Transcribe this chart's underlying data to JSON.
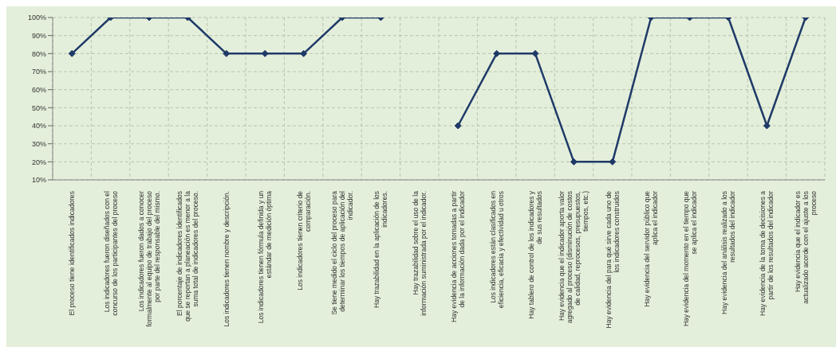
{
  "chart_data": {
    "type": "line",
    "categories": [
      "El proceso tiene identificados indicadores",
      "Los indicadores fueron diseñados con el concurso de los participantes del proceso",
      "Los indicadores fueron dados a conocer formalmente al equipo de trabajo del proceso por parte del responsable del mismo.",
      "El porcentaje de indicadores identificados que se reportan a planeación es menor a la suma total de indicadores del proceso.",
      "Los indicadores tienen nombre y descripción.",
      "Los indicadores tienen fórmula definida y un estándar de medición óptima",
      "Los indicadores tienen criterio de comparación.",
      "Se tiene medido el ciclo del proceso para determinar los tiempos de aplicación del indicador.",
      "Hay trazabilidad en la aplicación de los indicadores.",
      "Hay trazabilidad sobre el uso de la información suministrada por el indicador.",
      "Hay evidencia de acciones tomadas a partir de la información dada por el indicador",
      "Los indicadores están clasificados en eficiencia, eficacia y efectividad u otros",
      "Hay tablero de control de los indicadores y de sus resultados",
      "Hay evidencia que el indicador aporta valor agregado al proceso (disminución de costos de calidad, reprocesos, presupuestos, tiempos, etc.)",
      "Hay evidencia del para qué sirve cada uno de los indicadores construidos",
      "Hay evidencia del servidor público que aplica el indicador",
      "Hay evidencia del momento en el tiempo que se aplica el indicador",
      "Hay evidencia del análisis realizado a los resultados del indicador",
      "Hay evidencia de la toma de decisiones a partir de los resultados del indicador",
      "Hay evidencia que el indicador es actualizado acorde con el ajuste a los proceso"
    ],
    "series": [
      {
        "color": "#1f3a68",
        "values": [
          80,
          100,
          100,
          100,
          80,
          80,
          80,
          100,
          100,
          null,
          40,
          80,
          80,
          20,
          20,
          100,
          100,
          100,
          40,
          100
        ]
      }
    ],
    "ylim": [
      10,
      100
    ],
    "yticks": [
      {
        "value": 10,
        "label": "10%"
      },
      {
        "value": 20,
        "label": "20%"
      },
      {
        "value": 30,
        "label": "30%"
      },
      {
        "value": 40,
        "label": "40%"
      },
      {
        "value": 50,
        "label": "50%"
      },
      {
        "value": 60,
        "label": "60%"
      },
      {
        "value": 70,
        "label": "70%"
      },
      {
        "value": 80,
        "label": "80%"
      },
      {
        "value": 90,
        "label": "90%"
      },
      {
        "value": 100,
        "label": "100%"
      }
    ],
    "grid": true,
    "marker": "diamond",
    "line_style": "solid",
    "legend": false
  }
}
